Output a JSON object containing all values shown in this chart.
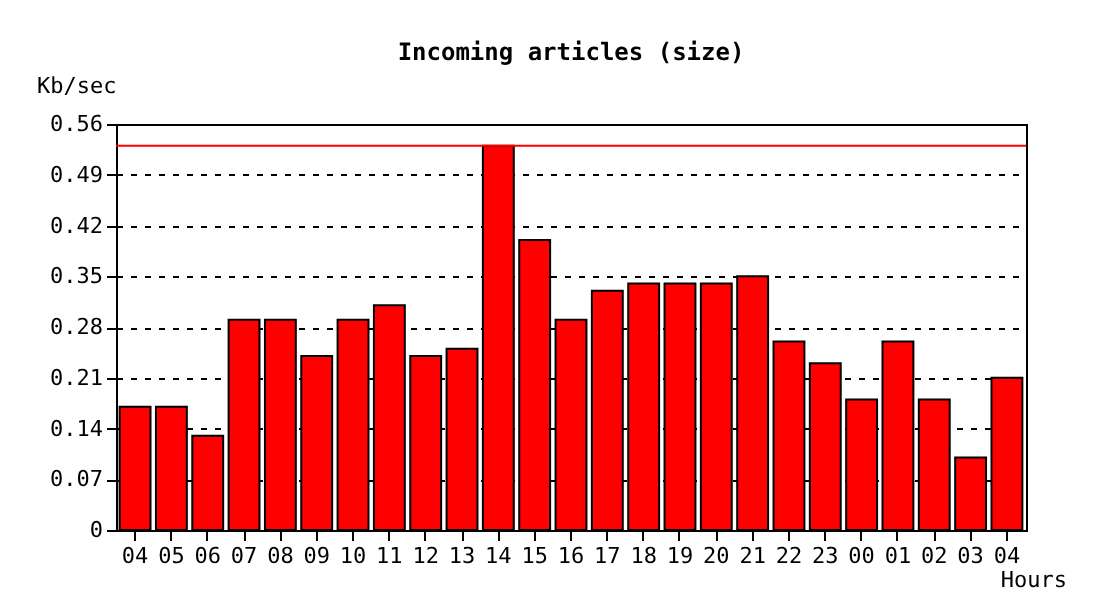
{
  "chart_data": {
    "type": "bar",
    "title": "Incoming articles (size)",
    "xlabel": "Hours",
    "ylabel": "Kb/sec",
    "categories": [
      "04",
      "05",
      "06",
      "07",
      "08",
      "09",
      "10",
      "11",
      "12",
      "13",
      "14",
      "15",
      "16",
      "17",
      "18",
      "19",
      "20",
      "21",
      "22",
      "23",
      "00",
      "01",
      "02",
      "03",
      "04"
    ],
    "values": [
      0.17,
      0.17,
      0.13,
      0.29,
      0.29,
      0.24,
      0.29,
      0.31,
      0.24,
      0.25,
      0.53,
      0.4,
      0.29,
      0.33,
      0.34,
      0.34,
      0.34,
      0.35,
      0.26,
      0.23,
      0.18,
      0.26,
      0.18,
      0.1,
      0.21
    ],
    "color": "#ff0000",
    "ylim": [
      0,
      0.56
    ],
    "yticks": [
      {
        "value": 0,
        "label": "0"
      },
      0.07,
      0.14,
      0.21,
      0.28,
      0.35,
      0.42,
      0.49,
      0.56
    ],
    "ref_lines": [
      {
        "axis": "y",
        "value": 0.53,
        "color": "#ff0000"
      }
    ],
    "grid": "y"
  }
}
